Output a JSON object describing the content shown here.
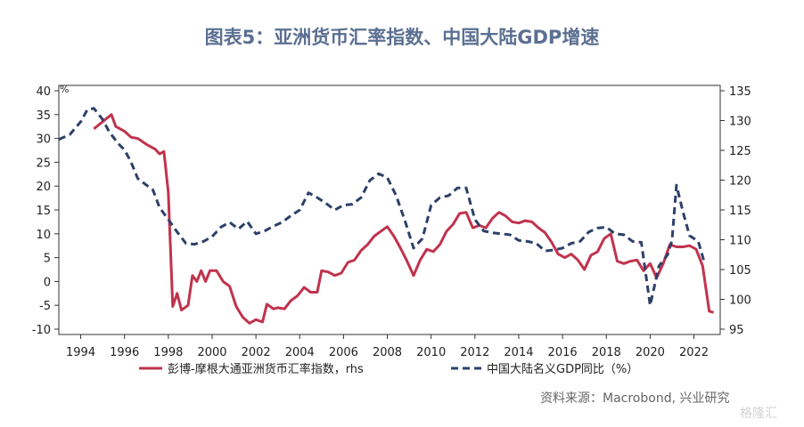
{
  "title": "图表5：亚洲货币汇率指数、中国大陆GDP增速",
  "source": "资料来源：Macrobond, 兴业研究",
  "watermark": "格隆汇",
  "chart_data": {
    "type": "line",
    "left_unit_label": "%",
    "left_axis": {
      "min": -10,
      "max": 40,
      "ticks": [
        40,
        35,
        30,
        25,
        20,
        15,
        10,
        5,
        0,
        -5,
        -10
      ]
    },
    "right_axis": {
      "min": 95,
      "max": 135,
      "ticks": [
        135,
        130,
        125,
        120,
        115,
        110,
        105,
        100,
        95
      ]
    },
    "x_axis": {
      "min": 1993,
      "max": 2023.2,
      "ticks": [
        "1994",
        "1996",
        "1998",
        "2000",
        "2002",
        "2004",
        "2006",
        "2008",
        "2010",
        "2012",
        "2014",
        "2016",
        "2018",
        "2020",
        "2022"
      ]
    },
    "colors": {
      "series_red": "#c0334d",
      "series_navy": "#2d4069",
      "title": "#5b6f91"
    },
    "series": [
      {
        "name": "彭博-摩根大通亚洲货币汇率指数，rhs",
        "axis": "right",
        "style": "solid",
        "points": [
          [
            1994.6,
            128.6
          ],
          [
            1995.0,
            129.8
          ],
          [
            1995.4,
            131.0
          ],
          [
            1995.6,
            129.0
          ],
          [
            1996.0,
            128.2
          ],
          [
            1996.3,
            127.2
          ],
          [
            1996.6,
            127.0
          ],
          [
            1997.0,
            126.0
          ],
          [
            1997.4,
            125.2
          ],
          [
            1997.6,
            124.4
          ],
          [
            1997.8,
            124.8
          ],
          [
            1998.0,
            118.0
          ],
          [
            1998.2,
            98.8
          ],
          [
            1998.4,
            101.0
          ],
          [
            1998.6,
            98.2
          ],
          [
            1998.9,
            99.0
          ],
          [
            1999.1,
            104.0
          ],
          [
            1999.3,
            103.0
          ],
          [
            1999.5,
            104.8
          ],
          [
            1999.7,
            103.0
          ],
          [
            1999.9,
            104.8
          ],
          [
            2000.2,
            104.8
          ],
          [
            2000.5,
            103.0
          ],
          [
            2000.8,
            102.2
          ],
          [
            2001.1,
            98.8
          ],
          [
            2001.4,
            97.0
          ],
          [
            2001.7,
            96.0
          ],
          [
            2002.0,
            96.6
          ],
          [
            2002.3,
            96.2
          ],
          [
            2002.5,
            99.2
          ],
          [
            2002.8,
            98.4
          ],
          [
            2003.0,
            98.6
          ],
          [
            2003.3,
            98.4
          ],
          [
            2003.6,
            99.8
          ],
          [
            2003.9,
            100.6
          ],
          [
            2004.2,
            102.0
          ],
          [
            2004.5,
            101.2
          ],
          [
            2004.8,
            101.2
          ],
          [
            2005.0,
            104.8
          ],
          [
            2005.3,
            104.6
          ],
          [
            2005.6,
            104.0
          ],
          [
            2005.9,
            104.4
          ],
          [
            2006.2,
            106.2
          ],
          [
            2006.5,
            106.6
          ],
          [
            2006.8,
            108.2
          ],
          [
            2007.1,
            109.2
          ],
          [
            2007.4,
            110.6
          ],
          [
            2007.7,
            111.4
          ],
          [
            2008.0,
            112.2
          ],
          [
            2008.3,
            110.6
          ],
          [
            2008.6,
            108.6
          ],
          [
            2008.9,
            106.4
          ],
          [
            2009.2,
            104.0
          ],
          [
            2009.5,
            106.6
          ],
          [
            2009.8,
            108.4
          ],
          [
            2010.1,
            108.0
          ],
          [
            2010.4,
            109.2
          ],
          [
            2010.7,
            111.4
          ],
          [
            2011.0,
            112.6
          ],
          [
            2011.3,
            114.4
          ],
          [
            2011.6,
            114.6
          ],
          [
            2011.9,
            112.0
          ],
          [
            2012.2,
            112.4
          ],
          [
            2012.5,
            112.0
          ],
          [
            2012.8,
            113.6
          ],
          [
            2013.1,
            114.6
          ],
          [
            2013.4,
            114.0
          ],
          [
            2013.7,
            113.0
          ],
          [
            2014.0,
            112.8
          ],
          [
            2014.3,
            113.2
          ],
          [
            2014.6,
            113.0
          ],
          [
            2014.9,
            112.0
          ],
          [
            2015.2,
            111.2
          ],
          [
            2015.5,
            109.6
          ],
          [
            2015.8,
            107.6
          ],
          [
            2016.1,
            107.0
          ],
          [
            2016.4,
            107.6
          ],
          [
            2016.7,
            106.6
          ],
          [
            2017.0,
            105.0
          ],
          [
            2017.3,
            107.4
          ],
          [
            2017.6,
            108.0
          ],
          [
            2017.9,
            110.2
          ],
          [
            2018.2,
            111.0
          ],
          [
            2018.5,
            106.4
          ],
          [
            2018.8,
            106.0
          ],
          [
            2019.1,
            106.4
          ],
          [
            2019.4,
            106.6
          ],
          [
            2019.7,
            104.8
          ],
          [
            2020.0,
            106.0
          ],
          [
            2020.3,
            103.6
          ],
          [
            2020.6,
            106.0
          ],
          [
            2020.9,
            109.2
          ],
          [
            2021.2,
            108.8
          ],
          [
            2021.5,
            108.8
          ],
          [
            2021.8,
            109.0
          ],
          [
            2022.1,
            108.4
          ],
          [
            2022.4,
            105.6
          ],
          [
            2022.7,
            98.0
          ],
          [
            2022.9,
            97.8
          ]
        ]
      },
      {
        "name": "中国大陆名义GDP同比（%）",
        "axis": "left",
        "style": "dashed",
        "points": [
          [
            1993.0,
            29.8
          ],
          [
            1993.5,
            30.8
          ],
          [
            1994.0,
            33.5
          ],
          [
            1994.3,
            36.0
          ],
          [
            1994.6,
            36.3
          ],
          [
            1995.0,
            34.0
          ],
          [
            1995.3,
            31.4
          ],
          [
            1995.7,
            29.0
          ],
          [
            1996.0,
            27.6
          ],
          [
            1996.3,
            25.0
          ],
          [
            1996.6,
            21.6
          ],
          [
            1997.0,
            20.2
          ],
          [
            1997.3,
            19.2
          ],
          [
            1997.6,
            15.5
          ],
          [
            1998.0,
            13.0
          ],
          [
            1998.4,
            10.4
          ],
          [
            1998.8,
            8.0
          ],
          [
            1999.2,
            7.8
          ],
          [
            1999.6,
            8.4
          ],
          [
            2000.0,
            9.4
          ],
          [
            2000.4,
            11.4
          ],
          [
            2000.8,
            12.4
          ],
          [
            2001.2,
            11.0
          ],
          [
            2001.6,
            12.6
          ],
          [
            2002.0,
            10.0
          ],
          [
            2002.4,
            10.6
          ],
          [
            2002.8,
            11.6
          ],
          [
            2003.2,
            12.4
          ],
          [
            2003.6,
            13.8
          ],
          [
            2004.0,
            15.0
          ],
          [
            2004.4,
            18.6
          ],
          [
            2004.8,
            17.6
          ],
          [
            2005.2,
            16.4
          ],
          [
            2005.6,
            15.0
          ],
          [
            2006.0,
            16.0
          ],
          [
            2006.4,
            16.2
          ],
          [
            2006.8,
            17.6
          ],
          [
            2007.2,
            21.2
          ],
          [
            2007.6,
            22.6
          ],
          [
            2008.0,
            21.8
          ],
          [
            2008.4,
            18.0
          ],
          [
            2008.8,
            12.8
          ],
          [
            2009.2,
            7.0
          ],
          [
            2009.6,
            9.0
          ],
          [
            2010.0,
            16.0
          ],
          [
            2010.4,
            17.6
          ],
          [
            2010.8,
            18.0
          ],
          [
            2011.2,
            19.6
          ],
          [
            2011.6,
            19.6
          ],
          [
            2012.0,
            13.0
          ],
          [
            2012.4,
            10.6
          ],
          [
            2012.8,
            10.2
          ],
          [
            2013.2,
            10.0
          ],
          [
            2013.6,
            9.8
          ],
          [
            2014.0,
            8.6
          ],
          [
            2014.4,
            8.4
          ],
          [
            2014.8,
            8.0
          ],
          [
            2015.2,
            6.4
          ],
          [
            2015.6,
            6.6
          ],
          [
            2016.0,
            7.0
          ],
          [
            2016.4,
            8.0
          ],
          [
            2016.8,
            8.4
          ],
          [
            2017.2,
            10.4
          ],
          [
            2017.6,
            11.2
          ],
          [
            2018.0,
            11.4
          ],
          [
            2018.4,
            10.0
          ],
          [
            2018.8,
            9.8
          ],
          [
            2019.2,
            8.4
          ],
          [
            2019.6,
            8.2
          ],
          [
            2020.0,
            -5.0
          ],
          [
            2020.4,
            3.2
          ],
          [
            2020.8,
            5.6
          ],
          [
            2021.0,
            8.6
          ],
          [
            2021.2,
            20.2
          ],
          [
            2021.5,
            14.6
          ],
          [
            2021.8,
            9.6
          ],
          [
            2022.2,
            8.4
          ],
          [
            2022.5,
            3.6
          ]
        ]
      }
    ]
  }
}
